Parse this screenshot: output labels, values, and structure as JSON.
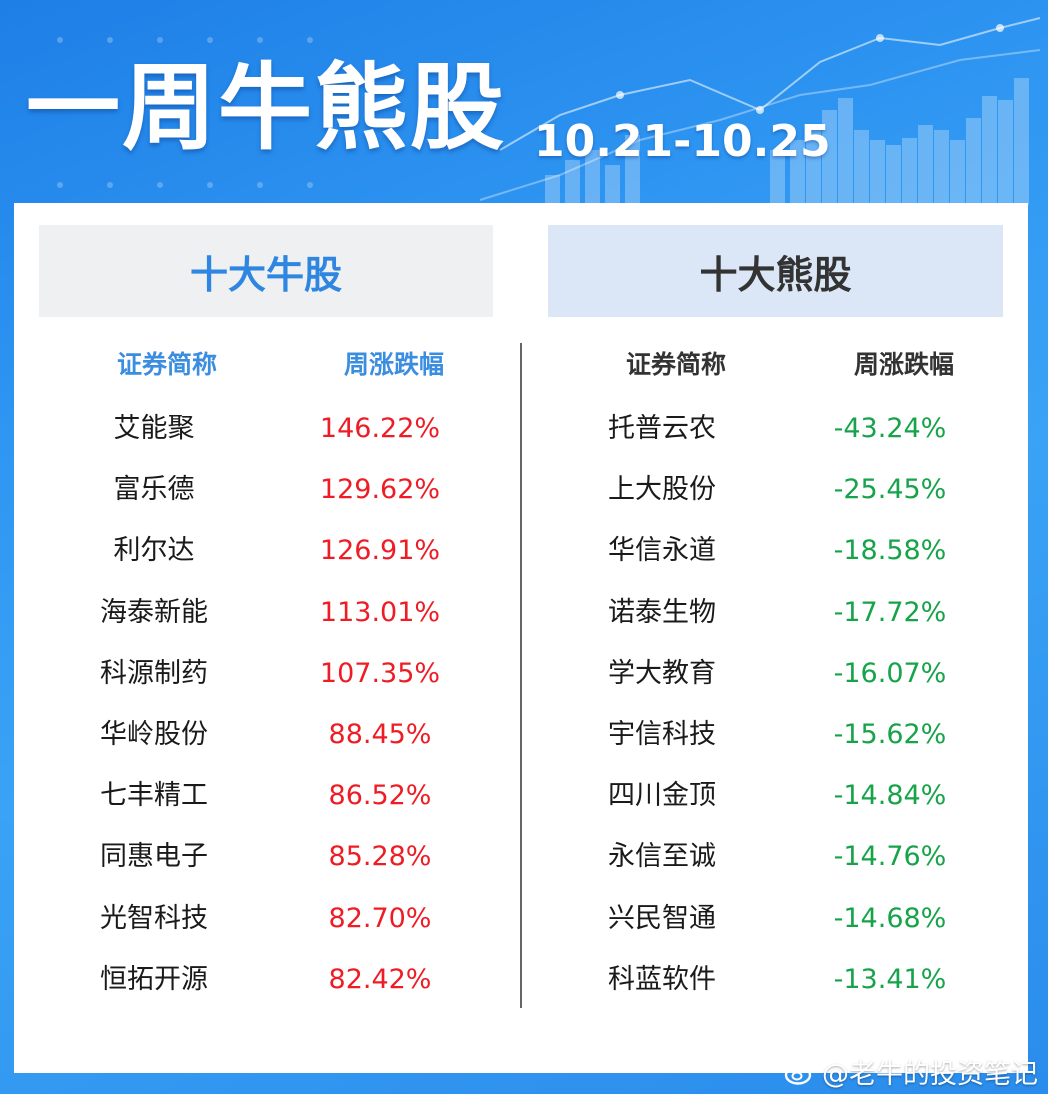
{
  "header": {
    "title": "一周牛熊股",
    "date_range": "10.21-10.25"
  },
  "bull": {
    "title": "十大牛股",
    "col_name": "证券简称",
    "col_change": "周涨跌幅",
    "rows": [
      {
        "name": "艾能聚",
        "change": "146.22%"
      },
      {
        "name": "富乐德",
        "change": "129.62%"
      },
      {
        "name": "利尔达",
        "change": "126.91%"
      },
      {
        "name": "海泰新能",
        "change": "113.01%"
      },
      {
        "name": "科源制药",
        "change": "107.35%"
      },
      {
        "name": "华岭股份",
        "change": "88.45%"
      },
      {
        "name": "七丰精工",
        "change": "86.52%"
      },
      {
        "name": "同惠电子",
        "change": "85.28%"
      },
      {
        "name": "光智科技",
        "change": "82.70%"
      },
      {
        "name": "恒拓开源",
        "change": "82.42%"
      }
    ]
  },
  "bear": {
    "title": "十大熊股",
    "col_name": "证券简称",
    "col_change": "周涨跌幅",
    "rows": [
      {
        "name": "托普云农",
        "change": "-43.24%"
      },
      {
        "name": "上大股份",
        "change": "-25.45%"
      },
      {
        "name": "华信永道",
        "change": "-18.58%"
      },
      {
        "name": "诺泰生物",
        "change": "-17.72%"
      },
      {
        "name": "学大教育",
        "change": "-16.07%"
      },
      {
        "name": "宇信科技",
        "change": "-15.62%"
      },
      {
        "name": "四川金顶",
        "change": "-14.84%"
      },
      {
        "name": "永信至诚",
        "change": "-14.76%"
      },
      {
        "name": "兴民智通",
        "change": "-14.68%"
      },
      {
        "name": "科蓝软件",
        "change": "-13.41%"
      }
    ]
  },
  "watermark": {
    "text": "@老牛的投资笔记",
    "icon": "weibo-icon"
  },
  "colors": {
    "up": "#ee1c24",
    "down": "#16a34a",
    "bull_title": "#2f86e0",
    "background": "#2f96f2"
  }
}
